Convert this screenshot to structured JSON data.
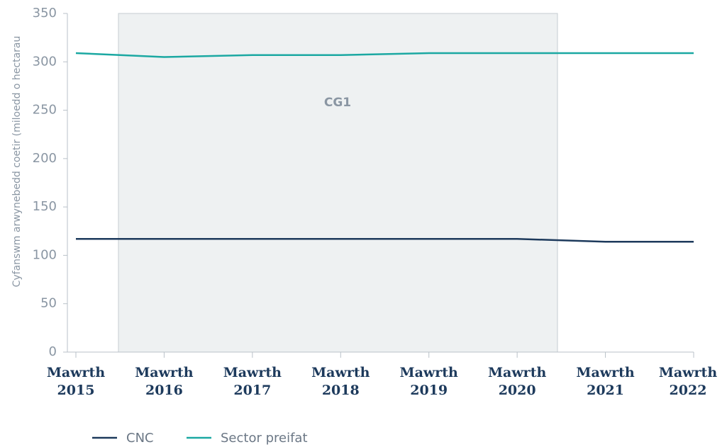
{
  "chart_data": {
    "type": "line",
    "y_label": "Cyfanswm arwynebedd coetir (miloedd o hectarau",
    "annotation": "CG1",
    "categories": [
      "Mawrth 2015",
      "Mawrth 2016",
      "Mawrth 2017",
      "Mawrth 2018",
      "Mawrth 2019",
      "Mawrth 2020",
      "Mawrth 2021",
      "Mawrth 2022"
    ],
    "series": [
      {
        "name": "CNC",
        "color": "#1d3a5c",
        "values": [
          117,
          117,
          117,
          117,
          117,
          117,
          114,
          114
        ]
      },
      {
        "name": "Sector preifat",
        "color": "#1ba8a2",
        "values": [
          309,
          305,
          307,
          307,
          309,
          309,
          309,
          309
        ]
      }
    ],
    "ylim": [
      0,
      350
    ],
    "yticks": [
      0,
      50,
      100,
      150,
      200,
      250,
      300,
      350
    ]
  }
}
